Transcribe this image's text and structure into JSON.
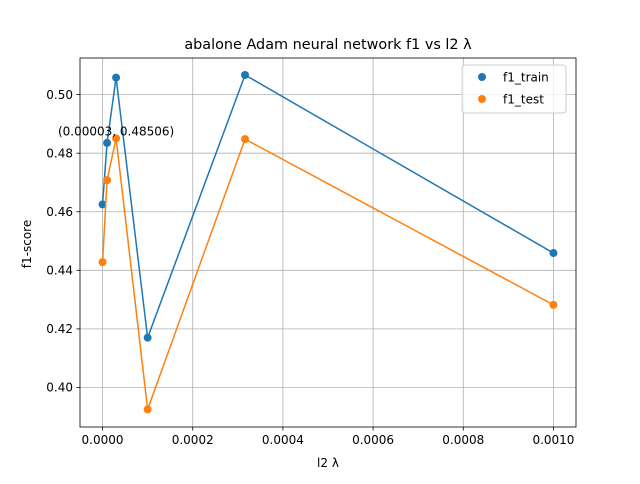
{
  "chart_data": {
    "type": "line",
    "title": "abalone Adam neural network f1 vs l2 λ",
    "xlabel": "l2 λ",
    "ylabel": "f1-score",
    "xlim": [
      -5e-05,
      0.00105
    ],
    "ylim": [
      0.3865,
      0.5125
    ],
    "xticks": [
      0.0,
      0.0002,
      0.0004,
      0.0006,
      0.0008,
      0.001
    ],
    "xtick_labels": [
      "0.0000",
      "0.0002",
      "0.0004",
      "0.0006",
      "0.0008",
      "0.0010"
    ],
    "yticks": [
      0.4,
      0.42,
      0.44,
      0.46,
      0.48,
      0.5
    ],
    "ytick_labels": [
      "0.40",
      "0.42",
      "0.44",
      "0.46",
      "0.48",
      "0.50"
    ],
    "grid": true,
    "legend_position": "upper right",
    "x": [
      0.0,
      1e-05,
      3e-05,
      0.0001,
      0.000316,
      0.001
    ],
    "series": [
      {
        "name": "f1_train",
        "color": "#1f77b4",
        "values": [
          0.4625,
          0.4835,
          0.5058,
          0.417,
          0.5067,
          0.4459
        ]
      },
      {
        "name": "f1_test",
        "color": "#ff7f0e",
        "values": [
          0.4428,
          0.4708,
          0.48506,
          0.3925,
          0.4848,
          0.4282
        ]
      }
    ],
    "annotations": [
      {
        "text": "(0.00003, 0.48506)",
        "x": 3e-05,
        "y": 0.48506
      }
    ]
  }
}
